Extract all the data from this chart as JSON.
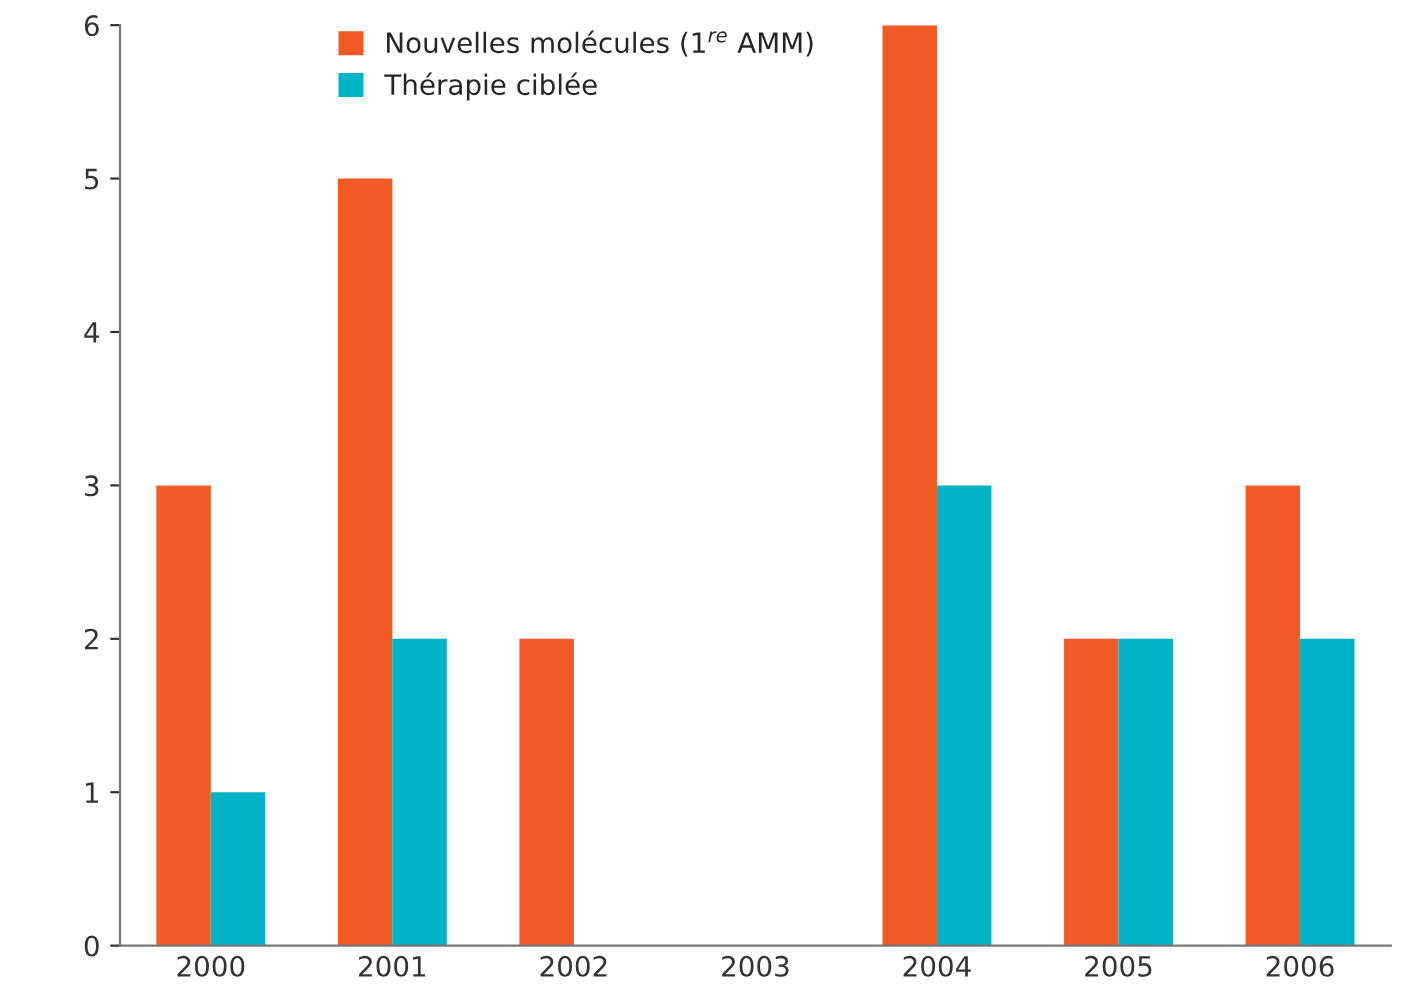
{
  "chart_data": {
    "type": "bar",
    "categories": [
      "2000",
      "2001",
      "2002",
      "2003",
      "2004",
      "2005",
      "2006"
    ],
    "series": [
      {
        "name": "Nouvelles molécules (1$^{re}$ AMM)",
        "color": "#f15a24",
        "values": [
          3,
          5,
          2,
          0,
          6,
          2,
          3
        ]
      },
      {
        "name": "Thérapie ciblée",
        "color": "#00b3c7",
        "values": [
          1,
          2,
          0,
          0,
          3,
          2,
          2
        ]
      }
    ],
    "ylim": [
      0,
      6
    ],
    "yticks": [
      0,
      1,
      2,
      3,
      4,
      5,
      6
    ],
    "grid": false,
    "legend": "top"
  }
}
